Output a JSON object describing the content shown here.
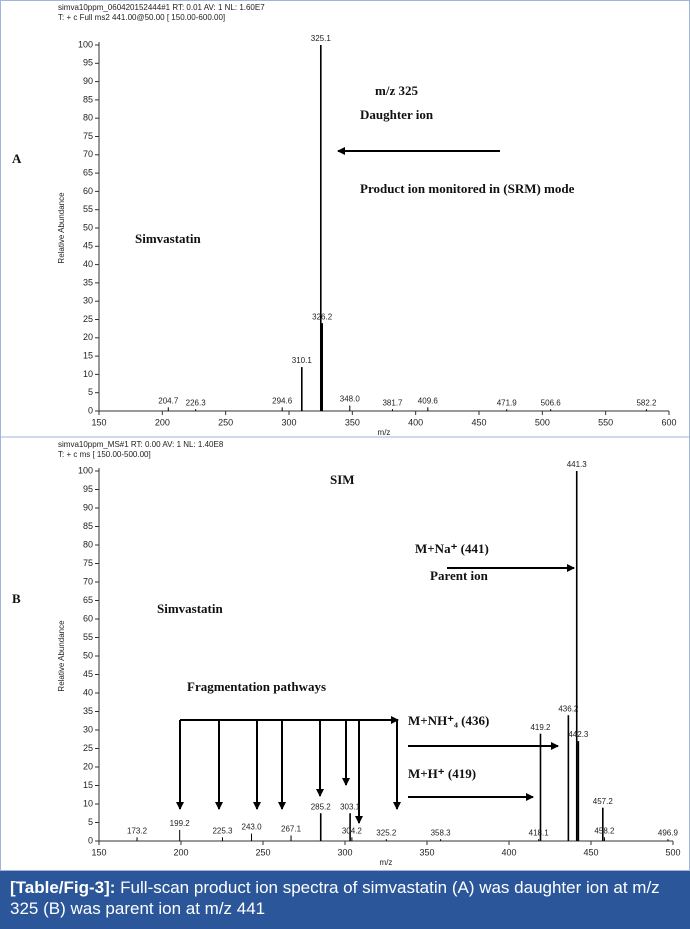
{
  "chart_data": [
    {
      "type": "bar",
      "panel": "A",
      "header": [
        "simva10ppm_060420152444#1  RT: 0.01  AV: 1  NL: 1.60E7",
        "T: + c Full ms2 441.00@50.00 [ 150.00-600.00]"
      ],
      "x_label": "m/z",
      "y_label": "Relative Abundance",
      "annotations": [
        "m/z 325",
        "Daughter ion",
        "Product ion monitored in (SRM) mode",
        "Simvastatin"
      ],
      "x": [
        204.7,
        226.3,
        294.6,
        310.1,
        325.1,
        326.2,
        348.0,
        381.7,
        409.6,
        471.9,
        506.6,
        582.2
      ],
      "peak_labels": [
        "204.7",
        "226.3",
        "294.6",
        "310.1",
        "325.1",
        "326.2",
        "348.0",
        "381.7",
        "409.6",
        "471.9",
        "506.6",
        "582.2"
      ],
      "values": [
        1,
        0.5,
        1,
        12,
        100,
        24,
        1.5,
        0.5,
        1,
        0.5,
        0.5,
        0.5
      ],
      "color": "#000000",
      "xlim": [
        150,
        600
      ],
      "xticks": [
        150,
        200,
        250,
        300,
        350,
        400,
        450,
        500,
        550,
        600
      ],
      "ylim": [
        0,
        100
      ],
      "yticks": [
        0,
        5,
        10,
        15,
        20,
        25,
        30,
        35,
        40,
        45,
        50,
        55,
        60,
        65,
        70,
        75,
        80,
        85,
        90,
        95,
        100
      ]
    },
    {
      "type": "bar",
      "panel": "B",
      "header": [
        "simva10ppm_MS#1  RT: 0.00  AV: 1  NL: 1.40E8",
        "T: + c ms [ 150.00-500.00]"
      ],
      "x_label": "m/z",
      "y_label": "Relative Abundance",
      "annotations": [
        "SIM",
        "M+Na⁺ (441)",
        "Parent ion",
        "Simvastatin",
        "Fragmentation pathways",
        "M+NH⁺₄ (436)",
        "M+H⁺ (419)"
      ],
      "x": [
        173.2,
        199.2,
        225.3,
        243.0,
        267.1,
        285.2,
        303.1,
        304.2,
        325.2,
        358.3,
        418.1,
        419.2,
        436.2,
        441.3,
        442.3,
        457.2,
        458.2,
        496.9
      ],
      "peak_labels": [
        "173.2",
        "199.2",
        "225.3",
        "243.0",
        "267.1",
        "285.2",
        "303.1",
        "304.2",
        "325.2",
        "358.3",
        "418.1",
        "419.2",
        "436.2",
        "441.3",
        "442.3",
        "457.2",
        "458.2",
        "496.9"
      ],
      "values": [
        1,
        3,
        1,
        2,
        1.5,
        7.5,
        7.5,
        1,
        0.5,
        0.5,
        0.5,
        29,
        34,
        100,
        27,
        9,
        1,
        0.5
      ],
      "color": "#000000",
      "xlim": [
        150,
        500
      ],
      "xticks": [
        150,
        200,
        250,
        300,
        350,
        400,
        450,
        500
      ],
      "ylim": [
        0,
        100
      ],
      "yticks": [
        0,
        5,
        10,
        15,
        20,
        25,
        30,
        35,
        40,
        45,
        50,
        55,
        60,
        65,
        70,
        75,
        80,
        85,
        90,
        95,
        100
      ]
    }
  ],
  "caption": {
    "label": "[Table/Fig-3]:",
    "text": " Full-scan product ion spectra of simvastatin (A) was daughter ion at m/z 325 (B) was  parent ion at m/z 441"
  }
}
